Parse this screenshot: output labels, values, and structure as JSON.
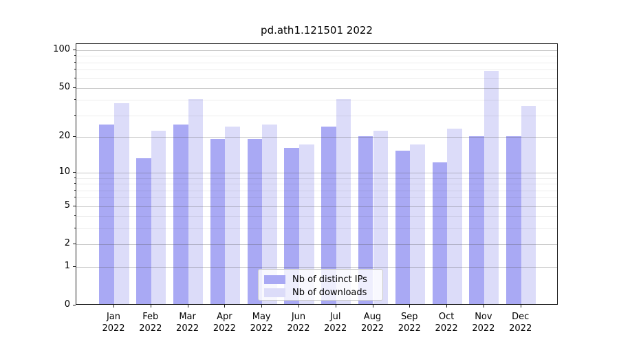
{
  "chart_data": {
    "type": "bar",
    "title": "pd.ath1.121501 2022",
    "year": "2022",
    "months": [
      "Jan",
      "Feb",
      "Mar",
      "Apr",
      "May",
      "Jun",
      "Jul",
      "Aug",
      "Sep",
      "Oct",
      "Nov",
      "Dec"
    ],
    "series": [
      {
        "name": "Nb of distinct IPs",
        "color": "#a9a9f4",
        "values": [
          25,
          13,
          25,
          19,
          19,
          16,
          24,
          20,
          15,
          12,
          20,
          20
        ]
      },
      {
        "name": "Nb of downloads",
        "color": "#dcdcf9",
        "values": [
          37,
          22,
          40,
          24,
          25,
          17,
          40,
          22,
          17,
          23,
          67,
          35
        ]
      }
    ],
    "yscale": "log1p",
    "yticks": [
      0,
      1,
      2,
      5,
      10,
      20,
      50,
      100
    ],
    "minor_yticks": [
      3,
      4,
      6,
      7,
      8,
      9,
      30,
      40,
      60,
      70,
      80,
      90
    ],
    "ylim": [
      0,
      112
    ],
    "grid": "both",
    "legend_position": "lower center",
    "background": "#ffffff"
  }
}
